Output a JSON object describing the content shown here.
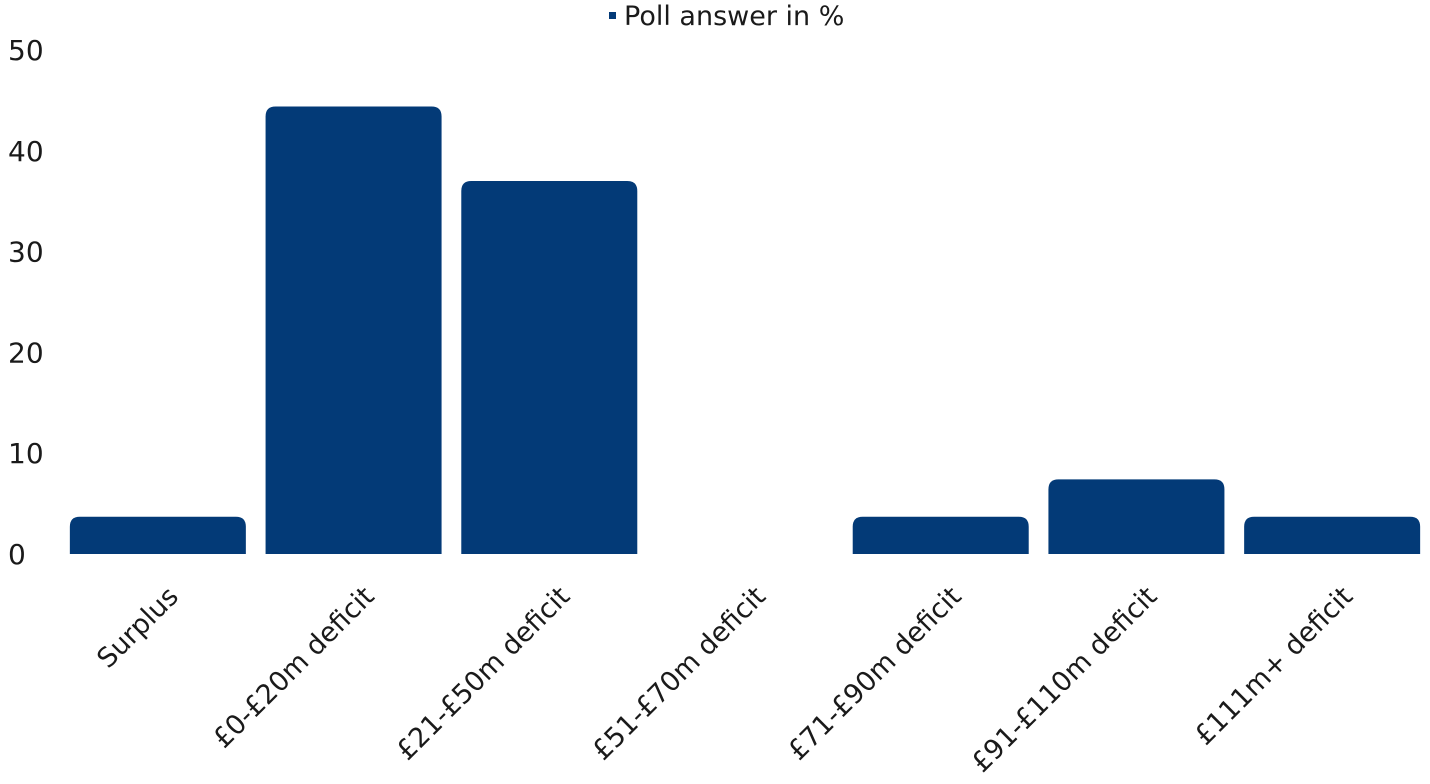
{
  "chart_data": {
    "type": "bar",
    "categories": [
      "Surplus",
      "£0-£20m deficit",
      "£21-£50m deficit",
      "£51-£70m deficit",
      "£71-£90m deficit",
      "£91-£110m deficit",
      "£111m+ deficit"
    ],
    "series": [
      {
        "name": "Poll answer in %",
        "values": [
          3.7,
          44.4,
          37.0,
          0,
          3.7,
          7.4,
          3.7
        ],
        "color": "#033a77"
      }
    ],
    "ylim": [
      0,
      50
    ],
    "yticks": [
      "0",
      "10",
      "20",
      "30",
      "40",
      "50"
    ],
    "grid": false,
    "legend_position": "top-center"
  }
}
